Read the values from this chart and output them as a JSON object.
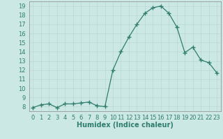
{
  "x": [
    0,
    1,
    2,
    3,
    4,
    5,
    6,
    7,
    8,
    9,
    10,
    11,
    12,
    13,
    14,
    15,
    16,
    17,
    18,
    19,
    20,
    21,
    22,
    23
  ],
  "y": [
    7.9,
    8.2,
    8.3,
    7.9,
    8.3,
    8.3,
    8.4,
    8.5,
    8.1,
    8.0,
    12.0,
    14.0,
    15.6,
    17.0,
    18.2,
    18.8,
    19.0,
    18.2,
    16.7,
    13.9,
    14.5,
    13.1,
    12.8,
    11.7
  ],
  "line_color": "#2e7d6e",
  "marker": "+",
  "marker_size": 4,
  "bg_color": "#cce8e4",
  "grid_color": "#b8d8d4",
  "xlabel": "Humidex (Indice chaleur)",
  "xlim": [
    -0.5,
    23.5
  ],
  "ylim": [
    7.5,
    19.5
  ],
  "yticks": [
    8,
    9,
    10,
    11,
    12,
    13,
    14,
    15,
    16,
    17,
    18,
    19
  ],
  "xticks": [
    0,
    1,
    2,
    3,
    4,
    5,
    6,
    7,
    8,
    9,
    10,
    11,
    12,
    13,
    14,
    15,
    16,
    17,
    18,
    19,
    20,
    21,
    22,
    23
  ],
  "tick_label_fontsize": 6,
  "xlabel_fontsize": 7,
  "axis_color": "#2e7d6e",
  "spine_color": "#888888",
  "grid_major_color": "#c4d8d4",
  "grid_minor_color": "#d8e8e6"
}
